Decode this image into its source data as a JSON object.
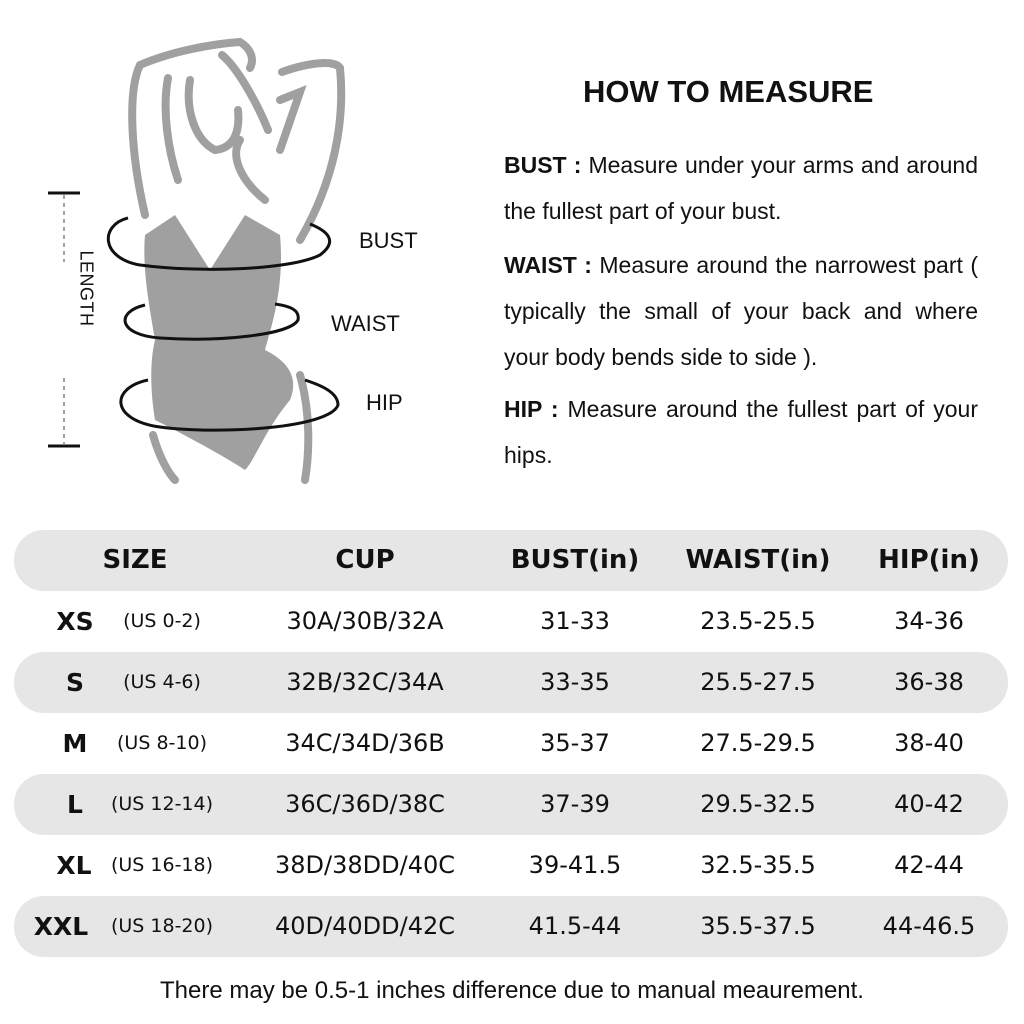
{
  "figure": {
    "labels": {
      "bust": "BUST",
      "waist": "WAIST",
      "hip": "HIP",
      "length": "LENGTH"
    }
  },
  "instructions": {
    "title": "HOW TO MEASURE",
    "items": [
      {
        "term": "BUST :",
        "text": " Measure under your arms and around the fullest part of your bust."
      },
      {
        "term": "WAIST :",
        "text": " Measure around the narrowest part ( typically the small of your back and where your body bends side to side )."
      },
      {
        "term": "HIP :",
        "text": " Measure around the fullest part of your hips."
      }
    ]
  },
  "table": {
    "headers": [
      "SIZE",
      "CUP",
      "BUST(in)",
      "WAIST(in)",
      "HIP(in)"
    ],
    "rows": [
      {
        "size": "XS",
        "us": "(US 0-2)",
        "cup": "30A/30B/32A",
        "bust": "31-33",
        "waist": "23.5-25.5",
        "hip": "34-36"
      },
      {
        "size": "S",
        "us": "(US 4-6)",
        "cup": "32B/32C/34A",
        "bust": "33-35",
        "waist": "25.5-27.5",
        "hip": "36-38"
      },
      {
        "size": "M",
        "us": "(US 8-10)",
        "cup": "34C/34D/36B",
        "bust": "35-37",
        "waist": "27.5-29.5",
        "hip": "38-40"
      },
      {
        "size": "L",
        "us": "(US 12-14)",
        "cup": "36C/36D/38C",
        "bust": "37-39",
        "waist": "29.5-32.5",
        "hip": "40-42"
      },
      {
        "size": "XL",
        "us": "(US 16-18)",
        "cup": "38D/38DD/40C",
        "bust": "39-41.5",
        "waist": "32.5-35.5",
        "hip": "42-44"
      },
      {
        "size": "XXL",
        "us": "(US 18-20)",
        "cup": "40D/40DD/42C",
        "bust": "41.5-44",
        "waist": "35.5-37.5",
        "hip": "44-46.5"
      }
    ]
  },
  "note": "There may be 0.5-1 inches difference due to manual meaurement.",
  "colors": {
    "row_shade": "#e6e6e6",
    "figure_gray": "#a0a0a0"
  }
}
